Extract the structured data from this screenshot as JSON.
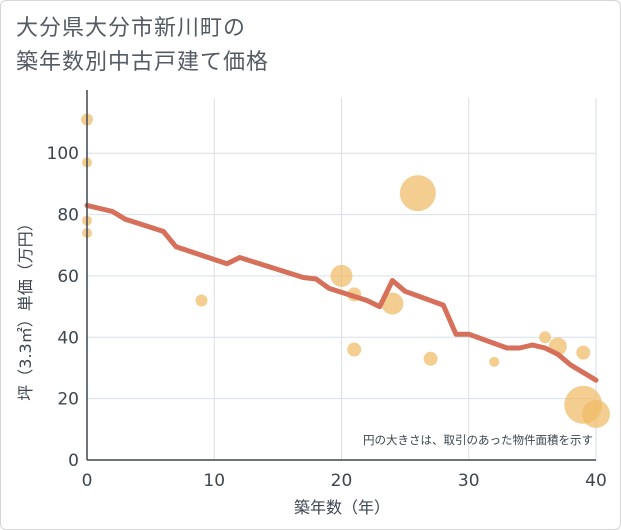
{
  "title_line1": "大分県大分市新川町の",
  "title_line2": "築年数別中古戸建て価格",
  "chart_data": {
    "type": "scatter",
    "title": "大分県大分市新川町の築年数別中古戸建て価格",
    "xlabel": "築年数（年）",
    "ylabel": "坪（3.3㎡）単価（万円）",
    "xlim": [
      0,
      40
    ],
    "ylim": [
      0,
      118
    ],
    "x_ticks": [
      "0",
      "10",
      "20",
      "30",
      "40"
    ],
    "y_ticks": [
      "0",
      "20",
      "40",
      "60",
      "80",
      "100"
    ],
    "note": "円の大きさは、取引のあった物件面積を示す",
    "colors": {
      "bubble": "#f0bb66",
      "line": "#d6705a",
      "grid": "#d9dfe6"
    },
    "bubbles": [
      {
        "x": 0,
        "y": 111,
        "size": 6
      },
      {
        "x": 0,
        "y": 97,
        "size": 5
      },
      {
        "x": 0,
        "y": 78,
        "size": 5
      },
      {
        "x": 0,
        "y": 74,
        "size": 5
      },
      {
        "x": 9,
        "y": 52,
        "size": 6
      },
      {
        "x": 20,
        "y": 60,
        "size": 11
      },
      {
        "x": 21,
        "y": 54,
        "size": 7
      },
      {
        "x": 21,
        "y": 36,
        "size": 7
      },
      {
        "x": 24,
        "y": 51,
        "size": 11
      },
      {
        "x": 26,
        "y": 87,
        "size": 18
      },
      {
        "x": 27,
        "y": 33,
        "size": 7
      },
      {
        "x": 32,
        "y": 32,
        "size": 5
      },
      {
        "x": 36,
        "y": 40,
        "size": 6
      },
      {
        "x": 37,
        "y": 37,
        "size": 9
      },
      {
        "x": 39,
        "y": 35,
        "size": 7
      },
      {
        "x": 39,
        "y": 18,
        "size": 19
      },
      {
        "x": 40,
        "y": 15,
        "size": 14
      }
    ],
    "trend": [
      {
        "x": 0,
        "y": 83
      },
      {
        "x": 2,
        "y": 81
      },
      {
        "x": 3,
        "y": 78.5
      },
      {
        "x": 6,
        "y": 74.5
      },
      {
        "x": 7,
        "y": 69.5
      },
      {
        "x": 11,
        "y": 64
      },
      {
        "x": 12,
        "y": 66
      },
      {
        "x": 17,
        "y": 59.5
      },
      {
        "x": 18,
        "y": 59
      },
      {
        "x": 19,
        "y": 56
      },
      {
        "x": 22,
        "y": 52
      },
      {
        "x": 23,
        "y": 50
      },
      {
        "x": 24,
        "y": 58.5
      },
      {
        "x": 25,
        "y": 55
      },
      {
        "x": 28,
        "y": 50.5
      },
      {
        "x": 29,
        "y": 41
      },
      {
        "x": 30,
        "y": 41
      },
      {
        "x": 33,
        "y": 36.5
      },
      {
        "x": 34,
        "y": 36.5
      },
      {
        "x": 35,
        "y": 37.5
      },
      {
        "x": 36,
        "y": 36.5
      },
      {
        "x": 37,
        "y": 34.5
      },
      {
        "x": 38,
        "y": 31
      },
      {
        "x": 40,
        "y": 26
      }
    ]
  }
}
